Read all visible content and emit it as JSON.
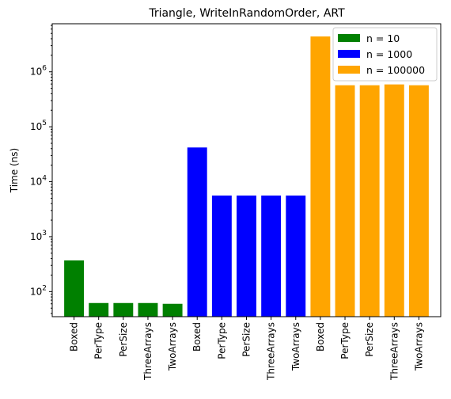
{
  "chart_data": {
    "type": "bar",
    "title": "Triangle, WriteInRandomOrder, ART",
    "xlabel": "",
    "ylabel": "Time (ns)",
    "yscale": "log",
    "ylim": [
      35,
      7500000
    ],
    "y_ticks": [
      {
        "value": 100,
        "base": "10",
        "exp": "2"
      },
      {
        "value": 1000,
        "base": "10",
        "exp": "3"
      },
      {
        "value": 10000,
        "base": "10",
        "exp": "4"
      },
      {
        "value": 100000,
        "base": "10",
        "exp": "5"
      },
      {
        "value": 1000000,
        "base": "10",
        "exp": "6"
      }
    ],
    "grid": false,
    "legend_position": "top-right",
    "categories": [
      "Boxed",
      "PerType",
      "PerSize",
      "ThreeArrays",
      "TwoArrays"
    ],
    "series": [
      {
        "name": "n = 10",
        "color": "#008000",
        "values": [
          370,
          62,
          62,
          62,
          60
        ]
      },
      {
        "name": "n = 1000",
        "color": "#0000ff",
        "values": [
          42000,
          5600,
          5600,
          5600,
          5600
        ]
      },
      {
        "name": "n = 100000",
        "color": "#ffa500",
        "values": [
          4400000,
          570000,
          570000,
          590000,
          570000
        ]
      }
    ]
  }
}
